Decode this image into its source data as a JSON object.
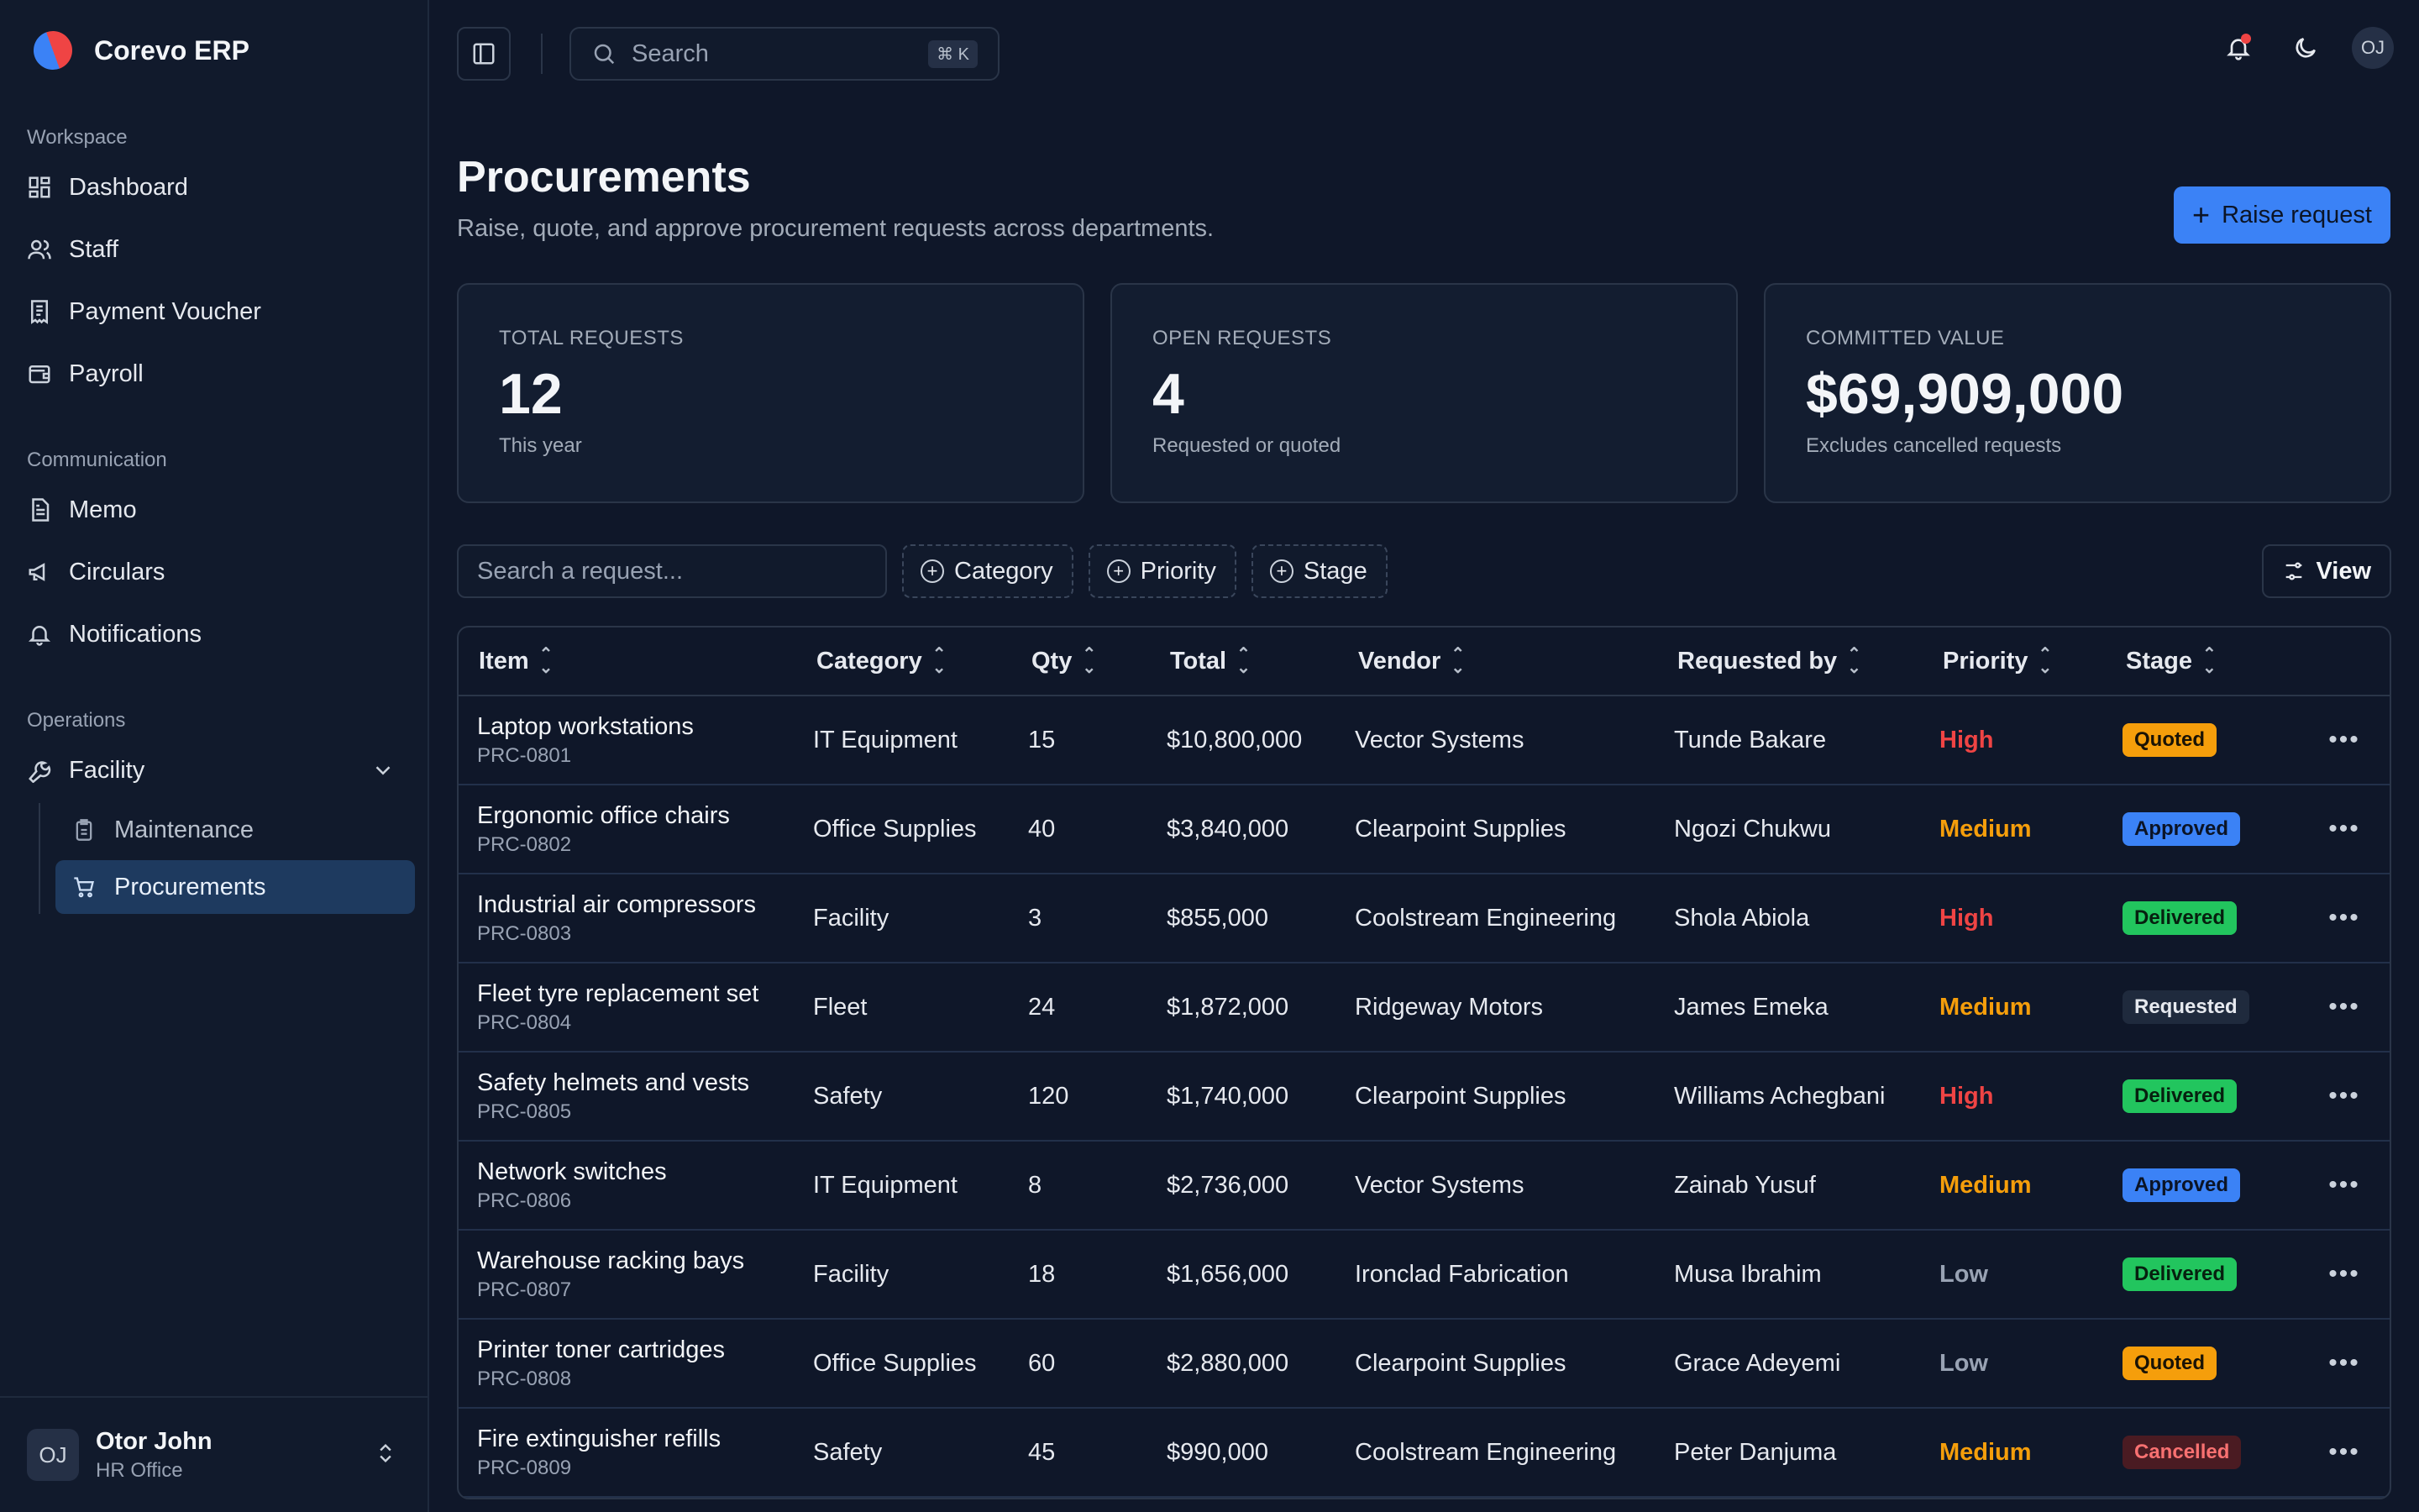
{
  "app": {
    "name": "Corevo ERP"
  },
  "sidebar": {
    "sections": [
      {
        "label": "Workspace",
        "items": [
          "Dashboard",
          "Staff",
          "Payment Voucher",
          "Payroll"
        ]
      },
      {
        "label": "Communication",
        "items": [
          "Memo",
          "Circulars",
          "Notifications"
        ]
      },
      {
        "label": "Operations",
        "items": [
          "Facility"
        ]
      }
    ],
    "facility_children": [
      "Maintenance",
      "Procurements"
    ],
    "active": "Procurements"
  },
  "user": {
    "initials": "OJ",
    "name": "Otor John",
    "role": "HR Office"
  },
  "topbar": {
    "search_placeholder": "Search",
    "shortcut": "⌘ K",
    "avatar": "OJ"
  },
  "page": {
    "title": "Procurements",
    "subtitle": "Raise, quote, and approve procurement requests across departments.",
    "primary_action": "Raise request"
  },
  "stats": [
    {
      "label": "TOTAL REQUESTS",
      "value": "12",
      "note": "This year"
    },
    {
      "label": "OPEN REQUESTS",
      "value": "4",
      "note": "Requested or quoted"
    },
    {
      "label": "COMMITTED VALUE",
      "value": "$69,909,000",
      "note": "Excludes cancelled requests"
    }
  ],
  "filters": {
    "search_placeholder": "Search a request...",
    "chips": [
      "Category",
      "Priority",
      "Stage"
    ],
    "view_label": "View"
  },
  "table": {
    "columns": [
      "Item",
      "Category",
      "Qty",
      "Total",
      "Vendor",
      "Requested by",
      "Priority",
      "Stage"
    ],
    "rows": [
      {
        "item": "Laptop workstations",
        "id": "PRC-0801",
        "category": "IT Equipment",
        "qty": "15",
        "total": "$10,800,000",
        "vendor": "Vector Systems",
        "requested_by": "Tunde Bakare",
        "priority": "High",
        "stage": "Quoted"
      },
      {
        "item": "Ergonomic office chairs",
        "id": "PRC-0802",
        "category": "Office Supplies",
        "qty": "40",
        "total": "$3,840,000",
        "vendor": "Clearpoint Supplies",
        "requested_by": "Ngozi Chukwu",
        "priority": "Medium",
        "stage": "Approved"
      },
      {
        "item": "Industrial air compressors",
        "id": "PRC-0803",
        "category": "Facility",
        "qty": "3",
        "total": "$855,000",
        "vendor": "Coolstream Engineering",
        "requested_by": "Shola Abiola",
        "priority": "High",
        "stage": "Delivered"
      },
      {
        "item": "Fleet tyre replacement set",
        "id": "PRC-0804",
        "category": "Fleet",
        "qty": "24",
        "total": "$1,872,000",
        "vendor": "Ridgeway Motors",
        "requested_by": "James Emeka",
        "priority": "Medium",
        "stage": "Requested"
      },
      {
        "item": "Safety helmets and vests",
        "id": "PRC-0805",
        "category": "Safety",
        "qty": "120",
        "total": "$1,740,000",
        "vendor": "Clearpoint Supplies",
        "requested_by": "Williams Achegbani",
        "priority": "High",
        "stage": "Delivered"
      },
      {
        "item": "Network switches",
        "id": "PRC-0806",
        "category": "IT Equipment",
        "qty": "8",
        "total": "$2,736,000",
        "vendor": "Vector Systems",
        "requested_by": "Zainab Yusuf",
        "priority": "Medium",
        "stage": "Approved"
      },
      {
        "item": "Warehouse racking bays",
        "id": "PRC-0807",
        "category": "Facility",
        "qty": "18",
        "total": "$1,656,000",
        "vendor": "Ironclad Fabrication",
        "requested_by": "Musa Ibrahim",
        "priority": "Low",
        "stage": "Delivered"
      },
      {
        "item": "Printer toner cartridges",
        "id": "PRC-0808",
        "category": "Office Supplies",
        "qty": "60",
        "total": "$2,880,000",
        "vendor": "Clearpoint Supplies",
        "requested_by": "Grace Adeyemi",
        "priority": "Low",
        "stage": "Quoted"
      },
      {
        "item": "Fire extinguisher refills",
        "id": "PRC-0809",
        "category": "Safety",
        "qty": "45",
        "total": "$990,000",
        "vendor": "Coolstream Engineering",
        "requested_by": "Peter Danjuma",
        "priority": "Medium",
        "stage": "Cancelled"
      }
    ]
  },
  "colors": {
    "accent": "#3b82f6",
    "priority": {
      "High": "#ef4444",
      "Medium": "#f59e0b",
      "Low": "#98a2b3"
    },
    "stage": {
      "Quoted": {
        "bg": "#f59e0b",
        "fg": "#1a1305"
      },
      "Approved": {
        "bg": "#3b82f6",
        "fg": "#0b1426"
      },
      "Delivered": {
        "bg": "#22c55e",
        "fg": "#06200f"
      },
      "Requested": {
        "bg": "#1f2a3d",
        "fg": "#e6e9ef"
      },
      "Cancelled": {
        "bg": "#4a1b22",
        "fg": "#f87171"
      }
    }
  }
}
